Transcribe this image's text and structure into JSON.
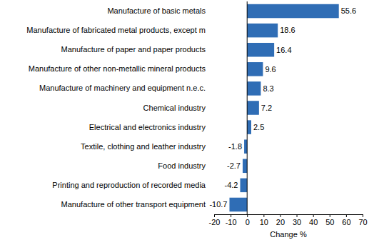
{
  "chart_data": {
    "type": "bar",
    "orientation": "horizontal",
    "categories": [
      "Manufacture of basic metals",
      "Manufacture of fabricated metal products, except m",
      "Manufacture of paper and paper products",
      "Manufacture of other non-metallic mineral products",
      "Manufacture of machinery and equipment n.e.c.",
      "Chemical industry",
      "Electrical and electronics industry",
      "Textile, clothing and leather industry",
      "Food industry",
      "Printing and reproduction of recorded media",
      "Manufacture of other transport equipment"
    ],
    "values": [
      55.6,
      18.6,
      16.4,
      9.6,
      8.3,
      7.2,
      2.5,
      -1.8,
      -2.7,
      -4.2,
      -10.7
    ],
    "color": "#2f6db5",
    "xlabel": "Change %",
    "xlim": [
      -20,
      70
    ],
    "xticks": [
      -20,
      -10,
      0,
      10,
      20,
      30,
      40,
      50,
      60,
      70
    ],
    "grid": false,
    "data_labels": true
  }
}
